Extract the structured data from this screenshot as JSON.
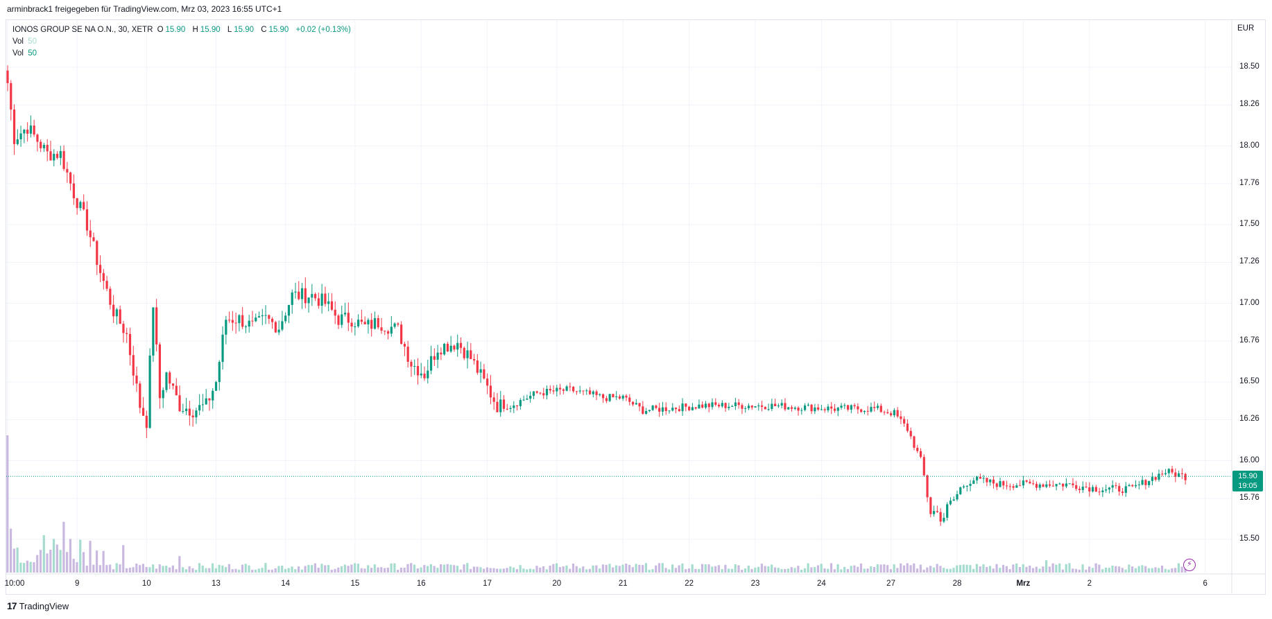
{
  "header": {
    "share_text": "arminbrack1 freigegeben für TradingView.com, Mrz 03, 2023 16:55 UTC+1"
  },
  "legend": {
    "symbol": "IONOS GROUP SE NA O.N., 30, XETR",
    "o_label": "O",
    "o_value": "15.90",
    "h_label": "H",
    "h_value": "15.90",
    "l_label": "L",
    "l_value": "15.90",
    "c_label": "C",
    "c_value": "15.90",
    "change": "+0.02 (+0.13%)",
    "vol1_label": "Vol",
    "vol1_value": "50",
    "vol2_label": "Vol",
    "vol2_value": "50"
  },
  "currency": "EUR",
  "price_tag": {
    "price": "15.90",
    "countdown": "19:05"
  },
  "footer": {
    "brand": "TradingView",
    "logo_text": "17"
  },
  "colors": {
    "up": "#089981",
    "down": "#f23645",
    "vol_up": "#a5dccf",
    "vol_down": "#c9b8e0",
    "grid": "#f0f3fa"
  },
  "chart_data": {
    "type": "candlestick",
    "interval": "30",
    "ylim": [
      15.3,
      18.72
    ],
    "y_ticks": [
      "18.50",
      "18.26",
      "18.00",
      "17.76",
      "17.50",
      "17.26",
      "17.00",
      "16.76",
      "16.50",
      "16.26",
      "16.00",
      "15.76",
      "15.50"
    ],
    "x_ticks": [
      {
        "label": "10:00",
        "bar": 0
      },
      {
        "label": "9",
        "bar": 21
      },
      {
        "label": "10",
        "bar": 42
      },
      {
        "label": "13",
        "bar": 63
      },
      {
        "label": "14",
        "bar": 84
      },
      {
        "label": "15",
        "bar": 105
      },
      {
        "label": "16",
        "bar": 125
      },
      {
        "label": "17",
        "bar": 145
      },
      {
        "label": "20",
        "bar": 166
      },
      {
        "label": "21",
        "bar": 186
      },
      {
        "label": "22",
        "bar": 206
      },
      {
        "label": "23",
        "bar": 226
      },
      {
        "label": "24",
        "bar": 246
      },
      {
        "label": "27",
        "bar": 267
      },
      {
        "label": "28",
        "bar": 287
      },
      {
        "label": "Mrz",
        "bar": 307,
        "bold": true
      },
      {
        "label": "2",
        "bar": 327
      },
      {
        "label": "6",
        "bar": 362
      }
    ],
    "last_price": 15.9,
    "keypoints": [
      [
        0,
        18.4
      ],
      [
        2,
        18.05
      ],
      [
        6,
        18.12
      ],
      [
        12,
        17.95
      ],
      [
        16,
        17.95
      ],
      [
        20,
        17.7
      ],
      [
        24,
        17.5
      ],
      [
        28,
        17.2
      ],
      [
        32,
        16.95
      ],
      [
        36,
        16.8
      ],
      [
        40,
        16.35
      ],
      [
        42,
        16.25
      ],
      [
        44,
        17.0
      ],
      [
        46,
        16.4
      ],
      [
        48,
        16.55
      ],
      [
        52,
        16.35
      ],
      [
        56,
        16.32
      ],
      [
        60,
        16.35
      ],
      [
        63,
        16.5
      ],
      [
        66,
        16.9
      ],
      [
        70,
        16.9
      ],
      [
        74,
        16.85
      ],
      [
        78,
        16.9
      ],
      [
        82,
        16.85
      ],
      [
        86,
        17.05
      ],
      [
        92,
        17.05
      ],
      [
        96,
        17.0
      ],
      [
        100,
        16.9
      ],
      [
        104,
        16.9
      ],
      [
        108,
        16.85
      ],
      [
        112,
        16.88
      ],
      [
        118,
        16.83
      ],
      [
        122,
        16.62
      ],
      [
        126,
        16.55
      ],
      [
        130,
        16.72
      ],
      [
        136,
        16.75
      ],
      [
        140,
        16.65
      ],
      [
        144,
        16.5
      ],
      [
        148,
        16.35
      ],
      [
        152,
        16.35
      ],
      [
        160,
        16.43
      ],
      [
        170,
        16.45
      ],
      [
        180,
        16.4
      ],
      [
        186,
        16.4
      ],
      [
        192,
        16.32
      ],
      [
        210,
        16.35
      ],
      [
        230,
        16.35
      ],
      [
        250,
        16.33
      ],
      [
        262,
        16.33
      ],
      [
        268,
        16.3
      ],
      [
        272,
        16.2
      ],
      [
        276,
        16.0
      ],
      [
        279,
        15.68
      ],
      [
        283,
        15.65
      ],
      [
        286,
        15.75
      ],
      [
        289,
        15.85
      ],
      [
        292,
        15.88
      ],
      [
        300,
        15.85
      ],
      [
        310,
        15.85
      ],
      [
        320,
        15.85
      ],
      [
        330,
        15.82
      ],
      [
        340,
        15.82
      ],
      [
        345,
        15.88
      ],
      [
        350,
        15.93
      ],
      [
        356,
        15.9
      ]
    ],
    "volume_max": 1.0
  }
}
